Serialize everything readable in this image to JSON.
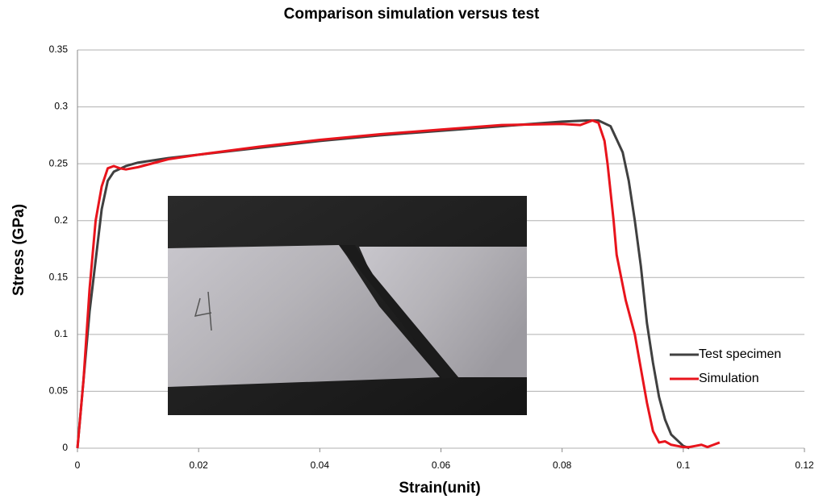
{
  "chart_data": {
    "type": "line",
    "title": "Comparison simulation versus test",
    "x_label": "Strain(unit)",
    "y_label": "Stress (GPa)",
    "xlim": [
      0,
      0.12
    ],
    "xticks": [
      0,
      0.02,
      0.04,
      0.06,
      0.08,
      0.1,
      0.12
    ],
    "ylim": [
      0,
      0.35
    ],
    "yticks": [
      0,
      0.05,
      0.1,
      0.15,
      0.2,
      0.25,
      0.3,
      0.35
    ],
    "grid": true,
    "legend": "right",
    "series": [
      {
        "name": "Test specimen",
        "color": "#404040",
        "x": [
          0,
          0.002,
          0.004,
          0.005,
          0.006,
          0.008,
          0.01,
          0.015,
          0.02,
          0.03,
          0.04,
          0.05,
          0.06,
          0.07,
          0.08,
          0.084,
          0.086,
          0.088,
          0.09,
          0.091,
          0.092,
          0.093,
          0.094,
          0.095,
          0.096,
          0.097,
          0.098,
          0.1,
          0.101
        ],
        "values": [
          0,
          0.12,
          0.21,
          0.235,
          0.243,
          0.248,
          0.251,
          0.255,
          0.258,
          0.264,
          0.27,
          0.275,
          0.279,
          0.283,
          0.287,
          0.288,
          0.288,
          0.283,
          0.26,
          0.235,
          0.2,
          0.16,
          0.11,
          0.075,
          0.045,
          0.025,
          0.012,
          0.002,
          0
        ]
      },
      {
        "name": "Simulation",
        "color": "#e8141c",
        "x": [
          0,
          0.001,
          0.002,
          0.003,
          0.004,
          0.005,
          0.006,
          0.007,
          0.008,
          0.01,
          0.015,
          0.02,
          0.03,
          0.04,
          0.05,
          0.06,
          0.07,
          0.08,
          0.083,
          0.085,
          0.086,
          0.087,
          0.0875,
          0.0885,
          0.089,
          0.0905,
          0.092,
          0.093,
          0.094,
          0.095,
          0.096,
          0.097,
          0.098,
          0.099,
          0.1,
          0.101,
          0.102,
          0.103,
          0.104,
          0.105,
          0.106
        ],
        "values": [
          0,
          0.06,
          0.14,
          0.2,
          0.23,
          0.246,
          0.248,
          0.246,
          0.245,
          0.247,
          0.254,
          0.258,
          0.265,
          0.271,
          0.276,
          0.28,
          0.284,
          0.285,
          0.284,
          0.288,
          0.286,
          0.27,
          0.25,
          0.2,
          0.17,
          0.13,
          0.1,
          0.07,
          0.04,
          0.015,
          0.005,
          0.006,
          0.003,
          0.002,
          0.001,
          0.001,
          0.002,
          0.003,
          0.001,
          0.003,
          0.005
        ]
      }
    ]
  }
}
